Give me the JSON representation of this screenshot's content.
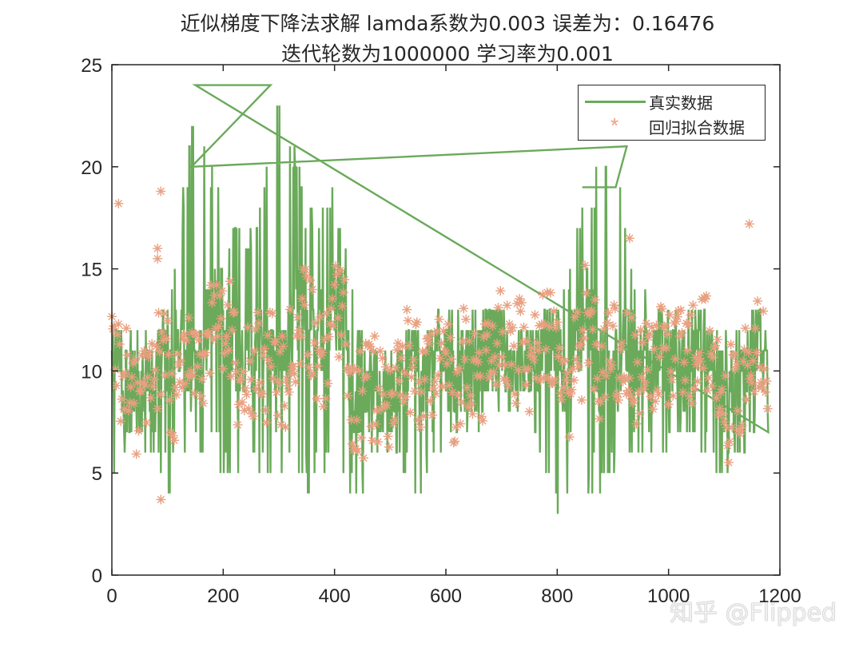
{
  "title": {
    "line1": "近似梯度下降法求解  lamda系数为0.003  误差为：0.16476",
    "line2": "迭代轮数为1000000   学习率为0.001"
  },
  "legend": {
    "items": [
      {
        "label": "真实数据",
        "type": "line",
        "color": "#6aaa5a"
      },
      {
        "label": "回归拟合数据",
        "type": "marker",
        "marker": "*",
        "color": "#e9a080"
      }
    ]
  },
  "watermark": "知乎 @Flipped",
  "axes": {
    "xticks": [
      "0",
      "200",
      "400",
      "600",
      "800",
      "1000",
      "1200"
    ],
    "yticks": [
      "0",
      "5",
      "10",
      "15",
      "20",
      "25"
    ]
  },
  "chart_data": {
    "type": "line",
    "title": "近似梯度下降法求解 lamda系数为0.003 误差为：0.16476 / 迭代轮数为1000000 学习率为0.001",
    "xlabel": "",
    "ylabel": "",
    "xlim": [
      0,
      1200
    ],
    "ylim": [
      0,
      25
    ],
    "grid": false,
    "legend_position": "upper right",
    "series": [
      {
        "name": "真实数据",
        "type": "line",
        "color": "#6aaa5a",
        "description": "~1180 samples, noisy integer values mostly 6-13; spikes to 24 near x≈150 and x≈285; elevated band 200-400 (up to 19-20); elevated band 850-940 (up to 21); minima ~3 near x≈475, 525, 805",
        "envelope_x": [
          0,
          50,
          100,
          150,
          200,
          250,
          300,
          350,
          400,
          450,
          500,
          550,
          600,
          650,
          700,
          750,
          800,
          850,
          900,
          950,
          1000,
          1050,
          1100,
          1150,
          1180
        ],
        "envelope_max": [
          14,
          12,
          13,
          24,
          18,
          17,
          24,
          19,
          19,
          12,
          11,
          12,
          13,
          14,
          13,
          12,
          13,
          19,
          21,
          14,
          13,
          13,
          12,
          13,
          12
        ],
        "envelope_min": [
          4,
          7,
          4,
          6,
          5,
          4,
          5,
          4,
          5,
          3,
          6,
          3,
          7,
          6,
          8,
          7,
          3,
          4,
          4,
          6,
          6,
          6,
          4,
          6,
          7
        ]
      },
      {
        "name": "回归拟合数据",
        "type": "scatter",
        "marker": "*",
        "color": "#e9a080",
        "description": "fitted values mostly 6-13; outliers 18.2 at x≈12, 18.8 at x≈88, 3.7 at x≈88, 17.2 at x≈1145, 16.5 at x≈930",
        "range_y": [
          3.6,
          18.8
        ]
      }
    ]
  }
}
